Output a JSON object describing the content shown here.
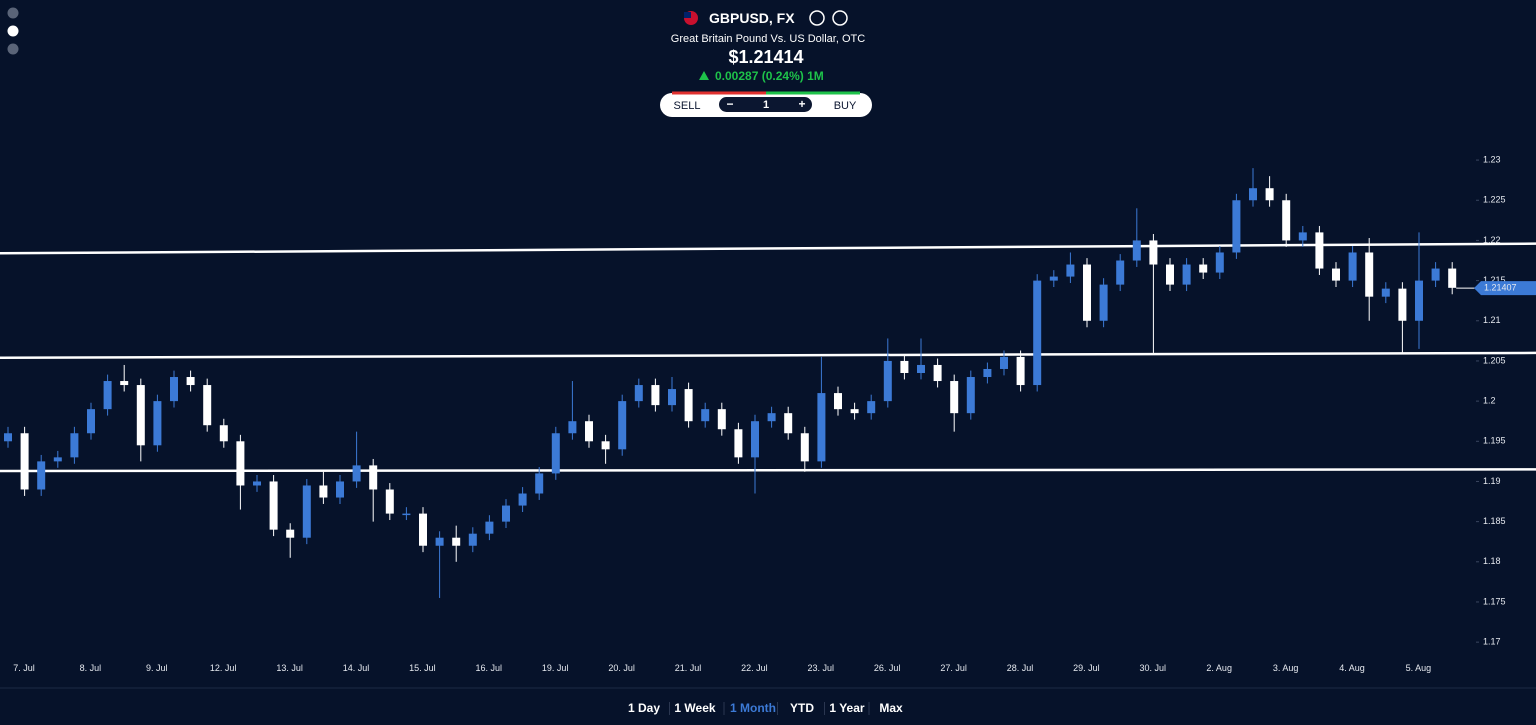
{
  "header": {
    "symbol": "GBPUSD, FX",
    "description": "Great Britain Pound Vs. US Dollar, OTC",
    "price": "$1.21414",
    "change": "0.00287 (0.24%) 1M"
  },
  "trade": {
    "sell": "SELL",
    "minus": "−",
    "quantity": "1",
    "plus": "+",
    "buy": "BUY"
  },
  "ranges": [
    "1 Day",
    "1 Week",
    "1 Month",
    "YTD",
    "1 Year",
    "Max"
  ],
  "active_range": 2,
  "chart_data": {
    "type": "candlestick",
    "categories": [
      "7. Jul",
      null,
      null,
      null,
      "8. Jul",
      null,
      null,
      null,
      "9. Jul",
      null,
      null,
      null,
      "12. Jul",
      null,
      null,
      null,
      "13. Jul",
      null,
      null,
      null,
      "14. Jul",
      null,
      null,
      null,
      "15. Jul",
      null,
      null,
      null,
      "16. Jul",
      null,
      null,
      null,
      "19. Jul",
      null,
      null,
      null,
      "20. Jul",
      null,
      null,
      null,
      "21. Jul",
      null,
      null,
      null,
      "22. Jul",
      null,
      null,
      null,
      "23. Jul",
      null,
      null,
      null,
      "26. Jul",
      null,
      null,
      null,
      "27. Jul",
      null,
      null,
      null,
      "28. Jul",
      null,
      null,
      null,
      "29. Jul",
      null,
      null,
      null,
      "30. Jul",
      null,
      null,
      null,
      "2. Aug",
      null,
      null,
      null,
      "3. Aug",
      null,
      null,
      null,
      "4. Aug",
      null,
      null,
      null,
      "5. Aug",
      null,
      null,
      null
    ],
    "open": [
      1.195,
      1.196,
      1.189,
      1.1925,
      1.193,
      1.196,
      1.199,
      1.2025,
      1.202,
      1.1945,
      1.2,
      1.203,
      1.202,
      1.197,
      1.195,
      1.1895,
      1.19,
      1.184,
      1.183,
      1.1895,
      1.188,
      1.19,
      1.192,
      1.189,
      1.186,
      1.186,
      1.182,
      1.183,
      1.182,
      1.1835,
      1.185,
      1.187,
      1.1885,
      1.191,
      1.196,
      1.1975,
      1.195,
      1.194,
      1.2,
      1.202,
      1.1995,
      1.2015,
      1.1975,
      1.199,
      1.1965,
      1.193,
      1.1975,
      1.1985,
      1.196,
      1.1925,
      1.201,
      1.199,
      1.1985,
      1.2,
      1.205,
      1.2035,
      1.2045,
      1.2025,
      1.1985,
      1.203,
      1.204,
      1.2055,
      1.202,
      1.215,
      1.2155,
      1.217,
      1.21,
      1.2145,
      1.2175,
      1.22,
      1.217,
      1.2145,
      1.217,
      1.216,
      1.2185,
      1.225,
      1.2265,
      1.225,
      1.22,
      1.221,
      1.2165,
      1.215,
      1.2185,
      1.213,
      1.214,
      1.21,
      1.215,
      1.2165
    ],
    "high": [
      1.1968,
      1.1968,
      1.1933,
      1.1938,
      1.1968,
      1.1998,
      1.2033,
      1.2045,
      1.2028,
      1.2008,
      1.2038,
      1.2038,
      1.2028,
      1.1978,
      1.1958,
      1.1908,
      1.1908,
      1.1848,
      1.1903,
      1.1912,
      1.1908,
      1.1962,
      1.1928,
      1.1898,
      1.1868,
      1.1868,
      1.1838,
      1.1845,
      1.1843,
      1.1858,
      1.1878,
      1.1893,
      1.1918,
      1.1968,
      1.2025,
      1.1983,
      1.1958,
      1.2008,
      1.2028,
      1.2028,
      1.203,
      1.2023,
      1.1998,
      1.1998,
      1.1973,
      1.1983,
      1.1993,
      1.1993,
      1.1968,
      1.2055,
      1.2018,
      1.1998,
      1.2008,
      1.2078,
      1.2058,
      1.2078,
      1.2053,
      1.2033,
      1.2038,
      1.2048,
      1.2063,
      1.2063,
      1.2158,
      1.2163,
      1.2185,
      1.2178,
      1.2153,
      1.2183,
      1.224,
      1.2208,
      1.2178,
      1.2178,
      1.2178,
      1.2193,
      1.2258,
      1.229,
      1.228,
      1.2258,
      1.2218,
      1.2218,
      1.2173,
      1.2193,
      1.2203,
      1.2148,
      1.2148,
      1.221,
      1.2173,
      1.2173
    ],
    "low": [
      1.1942,
      1.1882,
      1.1882,
      1.1917,
      1.1922,
      1.1952,
      1.1982,
      1.2012,
      1.1925,
      1.1937,
      1.1992,
      1.2012,
      1.1962,
      1.1942,
      1.1865,
      1.1887,
      1.1832,
      1.1805,
      1.1822,
      1.1872,
      1.1872,
      1.1892,
      1.185,
      1.1852,
      1.1852,
      1.1812,
      1.1755,
      1.18,
      1.1812,
      1.1827,
      1.1842,
      1.1862,
      1.1877,
      1.1902,
      1.1952,
      1.1942,
      1.1922,
      1.1932,
      1.1992,
      1.1987,
      1.1987,
      1.1967,
      1.1967,
      1.1957,
      1.1922,
      1.1885,
      1.1967,
      1.1952,
      1.1912,
      1.1917,
      1.1982,
      1.1977,
      1.1977,
      1.1992,
      1.2027,
      1.2027,
      1.2017,
      1.1962,
      1.1977,
      1.2022,
      1.2032,
      1.2012,
      1.2012,
      1.2142,
      1.2147,
      1.2092,
      1.2092,
      1.2137,
      1.2167,
      1.206,
      1.2137,
      1.2137,
      1.2152,
      1.2152,
      1.2177,
      1.2242,
      1.2242,
      1.2192,
      1.2192,
      1.2157,
      1.2142,
      1.2142,
      1.21,
      1.2122,
      1.206,
      1.2065,
      1.2142,
      1.2133
    ],
    "close": [
      1.196,
      1.189,
      1.1925,
      1.193,
      1.196,
      1.199,
      1.2025,
      1.202,
      1.1945,
      1.2,
      1.203,
      1.202,
      1.197,
      1.195,
      1.1895,
      1.19,
      1.184,
      1.183,
      1.1895,
      1.188,
      1.19,
      1.192,
      1.189,
      1.186,
      1.186,
      1.182,
      1.183,
      1.182,
      1.1835,
      1.185,
      1.187,
      1.1885,
      1.191,
      1.196,
      1.1975,
      1.195,
      1.194,
      1.2,
      1.202,
      1.1995,
      1.2015,
      1.1975,
      1.199,
      1.1965,
      1.193,
      1.1975,
      1.1985,
      1.196,
      1.1925,
      1.201,
      1.199,
      1.1985,
      1.2,
      1.205,
      1.2035,
      1.2045,
      1.2025,
      1.1985,
      1.203,
      1.204,
      1.2055,
      1.202,
      1.215,
      1.2155,
      1.217,
      1.21,
      1.2145,
      1.2175,
      1.22,
      1.217,
      1.2145,
      1.217,
      1.216,
      1.2185,
      1.225,
      1.2265,
      1.225,
      1.22,
      1.221,
      1.2165,
      1.215,
      1.2185,
      1.213,
      1.214,
      1.21,
      1.215,
      1.2165,
      1.2141
    ],
    "up_color": "#3c7ad6",
    "down_color": "#ffffff",
    "lines": [
      {
        "start": 1.2184,
        "end": 1.2196
      },
      {
        "start": 1.2054,
        "end": 1.206
      },
      {
        "start": 1.1913,
        "end": 1.1915
      }
    ],
    "last_price": 1.21407,
    "ylim": [
      1.1684,
      1.2325
    ],
    "yticks": [
      1.17,
      1.175,
      1.18,
      1.185,
      1.19,
      1.195,
      1.2,
      1.205,
      1.21,
      1.215,
      1.22,
      1.225,
      1.23
    ]
  }
}
